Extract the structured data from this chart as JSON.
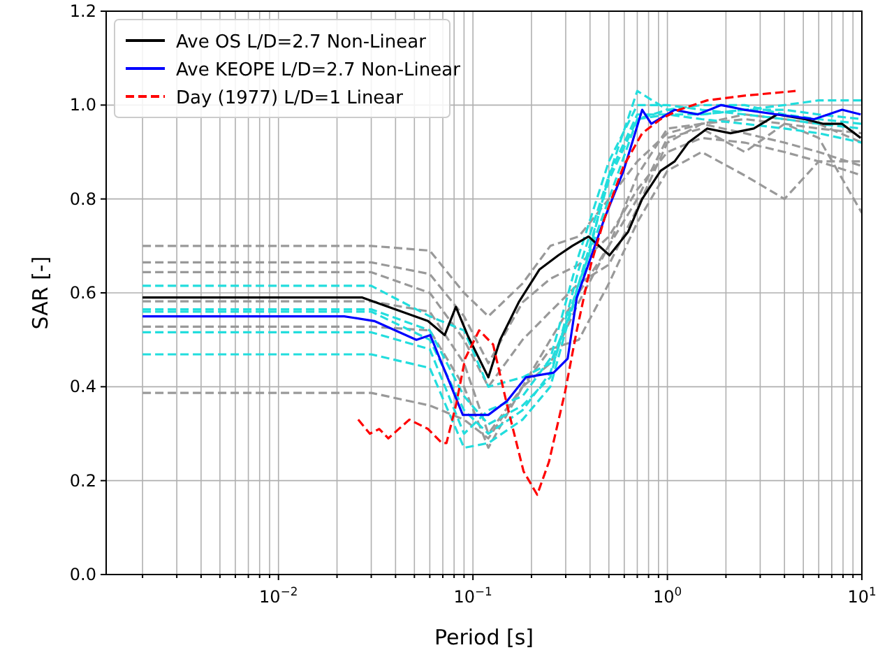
{
  "chart_data": {
    "type": "line",
    "xlabel": "Period [s]",
    "ylabel": "SAR [-]",
    "log": "x",
    "grid": true,
    "legend": "top left",
    "line_style": "solid",
    "marker": "none",
    "xlim": [
      0.0013,
      10
    ],
    "ylim": [
      0,
      1.2
    ],
    "xticks": [
      {
        "value": 0.002,
        "label": null
      },
      {
        "value": 0.003,
        "label": null
      },
      {
        "value": 0.004,
        "label": null
      },
      {
        "value": 0.005,
        "label": null
      },
      {
        "value": 0.006,
        "label": null
      },
      {
        "value": 0.007,
        "label": null
      },
      {
        "value": 0.008,
        "label": null
      },
      {
        "value": 0.009,
        "label": null
      },
      {
        "value": 0.01,
        "label": "10$^{−2}$"
      },
      {
        "value": 0.02,
        "label": null
      },
      {
        "value": 0.03,
        "label": null
      },
      {
        "value": 0.04,
        "label": null
      },
      {
        "value": 0.05,
        "label": null
      },
      {
        "value": 0.06,
        "label": null
      },
      {
        "value": 0.07,
        "label": null
      },
      {
        "value": 0.08,
        "label": null
      },
      {
        "value": 0.09,
        "label": null
      },
      {
        "value": 0.1,
        "label": "10$^{−1}$"
      },
      {
        "value": 0.2,
        "label": null
      },
      {
        "value": 0.3,
        "label": null
      },
      {
        "value": 0.4,
        "label": null
      },
      {
        "value": 0.5,
        "label": null
      },
      {
        "value": 0.6,
        "label": null
      },
      {
        "value": 0.7,
        "label": null
      },
      {
        "value": 0.8,
        "label": null
      },
      {
        "value": 0.9,
        "label": null
      },
      {
        "value": 1,
        "label": "10$^{0}$"
      },
      {
        "value": 2,
        "label": null
      },
      {
        "value": 3,
        "label": null
      },
      {
        "value": 4,
        "label": null
      },
      {
        "value": 5,
        "label": null
      },
      {
        "value": 6,
        "label": null
      },
      {
        "value": 7,
        "label": null
      },
      {
        "value": 8,
        "label": null
      },
      {
        "value": 9,
        "label": null
      },
      {
        "value": 10,
        "label": "10$^{1}$"
      }
    ],
    "yticks": [
      {
        "value": 0,
        "label": "0.0"
      },
      {
        "value": 0.2,
        "label": "0.2"
      },
      {
        "value": 0.4,
        "label": "0.4"
      },
      {
        "value": 0.6,
        "label": "0.6"
      },
      {
        "value": 0.8,
        "label": "0.8"
      },
      {
        "value": 1,
        "label": "1.0"
      },
      {
        "value": 1.2,
        "label": "1.2"
      }
    ],
    "x": [
      0.002,
      0.03,
      0.06,
      0.09,
      0.12,
      0.18,
      0.25,
      0.35,
      0.5,
      0.7,
      1.0,
      1.5,
      2.5,
      4,
      6,
      10
    ],
    "series": [
      {
        "color": "#999999",
        "line_style": "dashed",
        "values": [
          0.7,
          0.7,
          0.69,
          0.6,
          0.55,
          0.62,
          0.7,
          0.72,
          0.8,
          0.88,
          0.94,
          0.96,
          0.97,
          0.96,
          0.95,
          0.94
        ]
      },
      {
        "color": "#999999",
        "line_style": "dashed",
        "values": [
          0.665,
          0.665,
          0.64,
          0.55,
          0.45,
          0.58,
          0.63,
          0.66,
          0.72,
          0.82,
          0.9,
          0.93,
          0.92,
          0.9,
          0.88,
          0.88
        ]
      },
      {
        "color": "#999999",
        "line_style": "dashed",
        "values": [
          0.644,
          0.644,
          0.6,
          0.5,
          0.4,
          0.5,
          0.56,
          0.62,
          0.66,
          0.78,
          0.92,
          0.96,
          0.98,
          0.97,
          0.96,
          0.92
        ]
      },
      {
        "color": "#999999",
        "line_style": "dashed",
        "values": [
          0.582,
          0.582,
          0.56,
          0.45,
          0.3,
          0.4,
          0.48,
          0.5,
          0.62,
          0.75,
          0.86,
          0.9,
          0.85,
          0.8,
          0.88,
          0.85
        ]
      },
      {
        "color": "#999999",
        "line_style": "dashed",
        "values": [
          0.528,
          0.528,
          0.52,
          0.4,
          0.27,
          0.4,
          0.45,
          0.58,
          0.7,
          0.8,
          0.93,
          0.95,
          0.9,
          0.96,
          0.93,
          0.77
        ]
      },
      {
        "color": "#999999",
        "line_style": "dashed",
        "values": [
          0.387,
          0.387,
          0.36,
          0.33,
          0.29,
          0.4,
          0.5,
          0.6,
          0.7,
          0.85,
          0.95,
          0.96,
          0.94,
          0.92,
          0.9,
          0.87
        ]
      },
      {
        "color": "#22dddd",
        "line_style": "dashed",
        "values": [
          0.615,
          0.615,
          0.55,
          0.52,
          0.4,
          0.42,
          0.45,
          0.6,
          0.85,
          1.03,
          0.99,
          0.98,
          0.99,
          1.0,
          1.01,
          1.01
        ]
      },
      {
        "color": "#22dddd",
        "line_style": "dashed",
        "values": [
          0.565,
          0.565,
          0.52,
          0.38,
          0.32,
          0.36,
          0.42,
          0.65,
          0.85,
          0.98,
          0.98,
          0.97,
          0.96,
          0.95,
          0.94,
          0.92
        ]
      },
      {
        "color": "#22dddd",
        "line_style": "dashed",
        "values": [
          0.56,
          0.56,
          0.5,
          0.35,
          0.3,
          0.35,
          0.43,
          0.62,
          0.8,
          0.97,
          0.99,
          1.0,
          1.0,
          0.98,
          0.97,
          0.96
        ]
      },
      {
        "color": "#22dddd",
        "line_style": "dashed",
        "values": [
          0.516,
          0.516,
          0.48,
          0.3,
          0.35,
          0.38,
          0.46,
          0.68,
          0.88,
          1.0,
          1.0,
          0.99,
          0.98,
          0.97,
          0.96,
          0.95
        ]
      },
      {
        "color": "#22dddd",
        "line_style": "dashed",
        "values": [
          0.469,
          0.469,
          0.44,
          0.27,
          0.28,
          0.33,
          0.4,
          0.62,
          0.84,
          0.97,
          0.98,
          0.98,
          0.99,
          0.99,
          0.98,
          0.97
        ]
      },
      {
        "name": "Ave OS L/D=2.7 Non-Linear",
        "color": "#000000",
        "x": [
          0.002,
          0.027,
          0.0587,
          0.0716,
          0.0817,
          0.0938,
          0.12,
          0.138,
          0.172,
          0.22,
          0.275,
          0.324,
          0.393,
          0.504,
          0.628,
          0.742,
          0.923,
          1.09,
          1.28,
          1.6,
          2.11,
          2.78,
          3.66,
          5.1,
          6.35,
          7.91,
          9.86
        ],
        "values": [
          0.59,
          0.59,
          0.54,
          0.51,
          0.57,
          0.51,
          0.42,
          0.5,
          0.58,
          0.65,
          0.68,
          0.7,
          0.72,
          0.68,
          0.73,
          0.8,
          0.86,
          0.88,
          0.92,
          0.95,
          0.94,
          0.95,
          0.98,
          0.97,
          0.96,
          0.96,
          0.93
        ]
      },
      {
        "name": "Ave KEOPE L/D=2.7 Non-Linear",
        "color": "#0000ff",
        "x": [
          0.002,
          0.0218,
          0.0311,
          0.0512,
          0.0603,
          0.0887,
          0.12,
          0.15,
          0.187,
          0.26,
          0.307,
          0.342,
          0.476,
          0.595,
          0.742,
          0.826,
          1.09,
          1.43,
          1.89,
          2.49,
          3.66,
          5.69,
          7.91,
          9.86
        ],
        "values": [
          0.55,
          0.55,
          0.54,
          0.5,
          0.51,
          0.34,
          0.34,
          0.37,
          0.42,
          0.43,
          0.46,
          0.59,
          0.76,
          0.86,
          0.99,
          0.96,
          0.99,
          0.98,
          1.0,
          0.99,
          0.98,
          0.97,
          0.99,
          0.98
        ]
      },
      {
        "name": "Day (1977) L/D=1 Linear",
        "color": "#ff0000",
        "line_style": "dashed",
        "x": [
          0.0257,
          0.0295,
          0.033,
          0.0367,
          0.0471,
          0.0588,
          0.0693,
          0.0731,
          0.0817,
          0.0912,
          0.1076,
          0.127,
          0.15,
          0.182,
          0.214,
          0.246,
          0.298,
          0.342,
          0.404,
          0.476,
          0.595,
          0.742,
          0.923,
          1.15,
          1.6,
          2.49,
          4.56
        ],
        "values": [
          0.33,
          0.3,
          0.31,
          0.29,
          0.33,
          0.31,
          0.28,
          0.28,
          0.36,
          0.46,
          0.52,
          0.49,
          0.36,
          0.22,
          0.17,
          0.24,
          0.39,
          0.52,
          0.66,
          0.76,
          0.87,
          0.94,
          0.97,
          0.99,
          1.01,
          1.02,
          1.03
        ]
      }
    ]
  }
}
